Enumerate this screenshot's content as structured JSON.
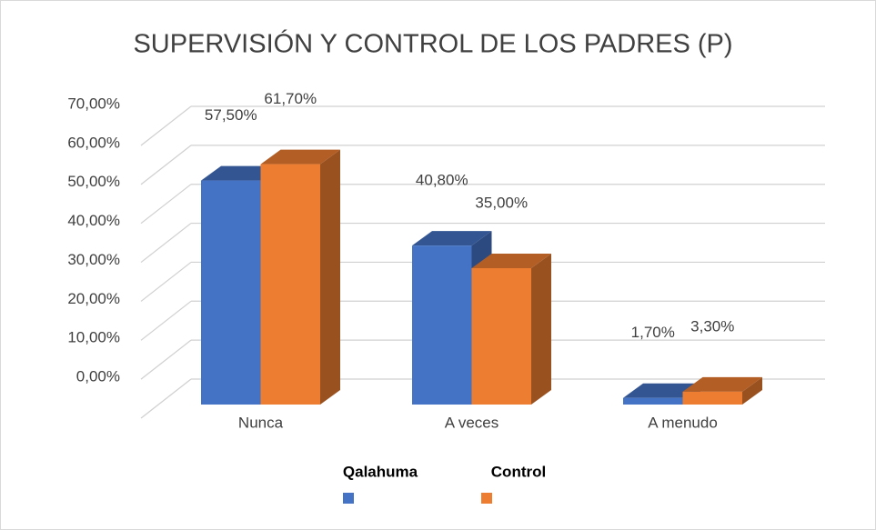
{
  "chart_data": {
    "type": "bar3d",
    "title": "SUPERVISIÓN Y CONTROL DE LOS PADRES (P)",
    "categories": [
      "Nunca",
      "A veces",
      "A menudo"
    ],
    "series": [
      {
        "name": "Qalahuma",
        "color": "#4472c4",
        "values": [
          57.5,
          40.8,
          1.7
        ],
        "value_labels": [
          "57,50%",
          "40,80%",
          "1,70%"
        ]
      },
      {
        "name": "Control",
        "color": "#ed7d31",
        "values": [
          61.7,
          35.0,
          3.3
        ],
        "value_labels": [
          "61,70%",
          "35,00%",
          "3,30%"
        ]
      }
    ],
    "ylim": [
      0,
      70
    ],
    "yticks": [
      {
        "value": 0,
        "label": "0,00%"
      },
      {
        "value": 10,
        "label": "10,00%"
      },
      {
        "value": 20,
        "label": "20,00%"
      },
      {
        "value": 30,
        "label": "30,00%"
      },
      {
        "value": 40,
        "label": "40,00%"
      },
      {
        "value": 50,
        "label": "50,00%"
      },
      {
        "value": 60,
        "label": "60,00%"
      },
      {
        "value": 70,
        "label": "70,00%"
      }
    ],
    "grid": true,
    "legend": "bottom"
  }
}
